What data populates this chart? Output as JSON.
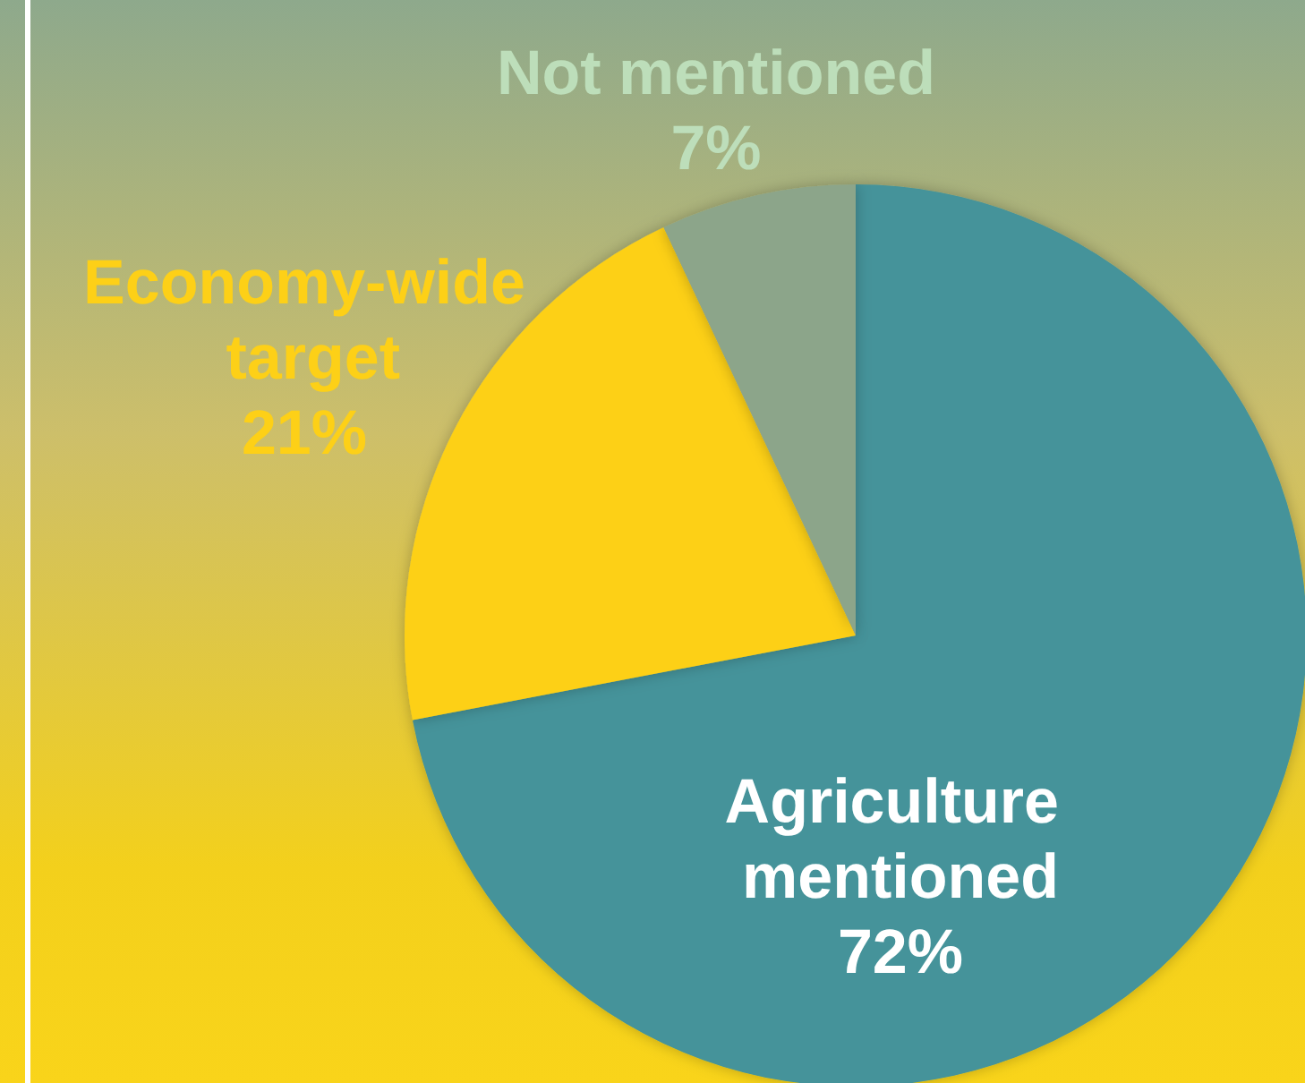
{
  "chart_data": {
    "type": "pie",
    "categories": [
      "Agriculture mentioned",
      "Economy-wide target",
      "Not mentioned"
    ],
    "values": [
      72,
      21,
      7
    ],
    "colors": [
      "#45939a",
      "#fdd017",
      "#8ca58a"
    ],
    "value_labels": [
      "72%",
      "21%",
      "7%"
    ],
    "legend": false
  }
}
